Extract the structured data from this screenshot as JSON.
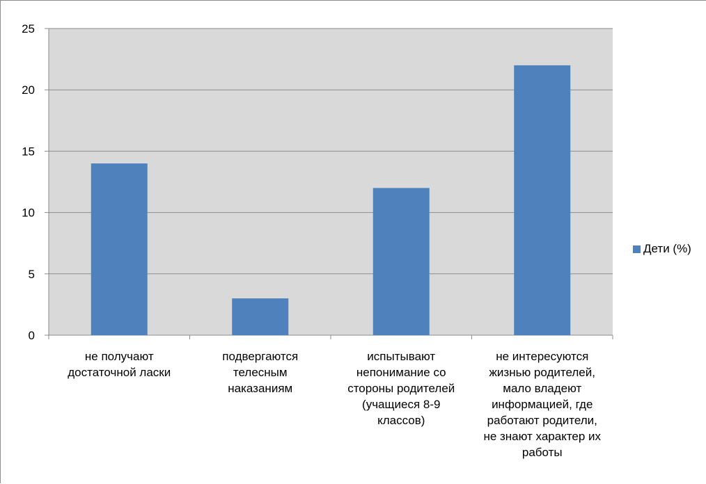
{
  "chart_data": {
    "type": "bar",
    "categories": [
      "не получают\nдостаточной ласки",
      "подвергаются\nтелесным\nнаказаниям",
      "испытывают\nнепонимание со\nстороны родителей\n(учащиеся 8-9\nклассов)",
      "не интересуются\nжизнью родителей,\nмало владеют\nинформацией, где\nработают родители,\nне знают характер их\nработы"
    ],
    "series": [
      {
        "name": "Дети (%)",
        "values": [
          14,
          3,
          12,
          22
        ],
        "color": "#4f81bd"
      }
    ],
    "ylim": [
      0,
      25
    ],
    "yticks": [
      "0",
      "5",
      "10",
      "15",
      "20",
      "25"
    ],
    "grid": true,
    "plot_background": "#d9d9d9",
    "legend_position": "right"
  }
}
